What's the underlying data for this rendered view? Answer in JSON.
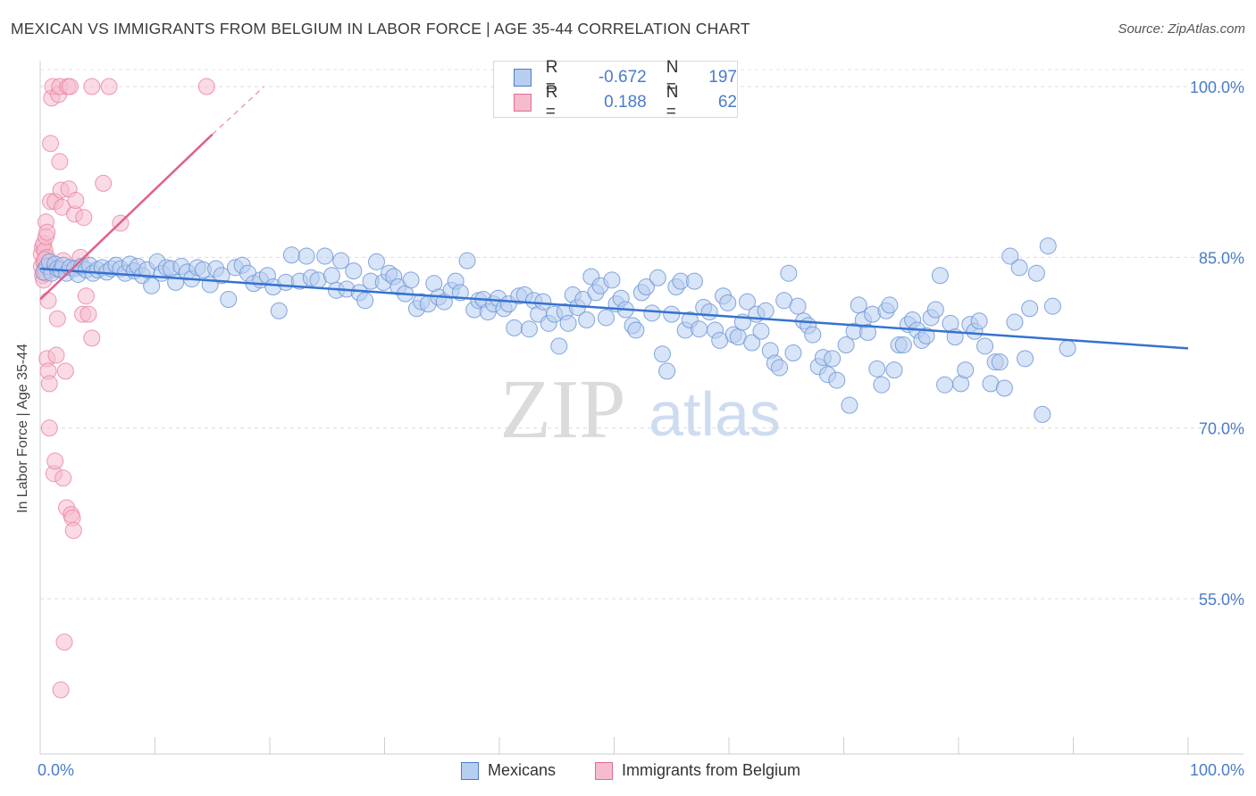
{
  "title": "MEXICAN VS IMMIGRANTS FROM BELGIUM IN LABOR FORCE | AGE 35-44 CORRELATION CHART",
  "source": "Source: ZipAtlas.com",
  "watermark": {
    "zip": "ZIP",
    "atlas": "atlas"
  },
  "colors": {
    "blue": "#4a7cc9",
    "blue_fill": "#b8cef0",
    "pink": "#e46a93",
    "pink_fill": "#f5bccd"
  },
  "legend": {
    "r_label": "R =",
    "n_label": "N =",
    "rows": [
      {
        "r": "-0.672",
        "n": "197"
      },
      {
        "r": "0.188",
        "n": "62"
      }
    ]
  },
  "chart_data": {
    "type": "scatter",
    "title": "MEXICAN VS IMMIGRANTS FROM BELGIUM IN LABOR FORCE | AGE 35-44 CORRELATION CHART",
    "xlabel": "",
    "ylabel": "In Labor Force | Age 35-44",
    "xlim": [
      0,
      100
    ],
    "ylim": [
      43,
      100
    ],
    "x_tick_labels": [
      "0.0%",
      "100.0%"
    ],
    "y_ticks": [
      55,
      70,
      85,
      100
    ],
    "y_tick_labels": [
      "55.0%",
      "70.0%",
      "85.0%",
      "100.0%"
    ],
    "grid": true,
    "legend_position": "top-center",
    "series": [
      {
        "name": "Mexicans",
        "color": "#4a7cc9",
        "trend": {
          "x": [
            0,
            100
          ],
          "y": [
            84.0,
            77.0
          ]
        },
        "points": [
          [
            0.3,
            83.7
          ],
          [
            0.6,
            84.2
          ],
          [
            0.8,
            84.6
          ],
          [
            1.0,
            83.6
          ],
          [
            1.3,
            84.4
          ],
          [
            1.5,
            84.0
          ],
          [
            1.8,
            83.9
          ],
          [
            2.0,
            84.3
          ],
          [
            2.3,
            83.6
          ],
          [
            2.6,
            84.1
          ],
          [
            3.0,
            84.0
          ],
          [
            3.3,
            83.5
          ],
          [
            3.6,
            84.2
          ],
          [
            4.0,
            83.9
          ],
          [
            4.3,
            84.3
          ],
          [
            4.6,
            83.6
          ],
          [
            5.0,
            83.9
          ],
          [
            5.4,
            84.1
          ],
          [
            5.8,
            83.7
          ],
          [
            6.2,
            84.0
          ],
          [
            6.6,
            84.3
          ],
          [
            7.0,
            84.0
          ],
          [
            7.4,
            83.6
          ],
          [
            7.8,
            84.4
          ],
          [
            8.2,
            83.8
          ],
          [
            8.5,
            84.2
          ],
          [
            8.9,
            83.4
          ],
          [
            9.3,
            83.9
          ],
          [
            9.7,
            82.5
          ],
          [
            10.2,
            84.6
          ],
          [
            10.6,
            83.6
          ],
          [
            11.0,
            84.1
          ],
          [
            11.4,
            84.0
          ],
          [
            11.8,
            82.8
          ],
          [
            12.3,
            84.2
          ],
          [
            12.8,
            83.7
          ],
          [
            13.2,
            83.1
          ],
          [
            13.7,
            84.1
          ],
          [
            14.2,
            83.9
          ],
          [
            14.8,
            82.6
          ],
          [
            15.3,
            84.0
          ],
          [
            15.8,
            83.4
          ],
          [
            16.4,
            81.3
          ],
          [
            17.0,
            84.1
          ],
          [
            17.6,
            84.3
          ],
          [
            18.1,
            83.6
          ],
          [
            18.6,
            82.7
          ],
          [
            19.2,
            83.0
          ],
          [
            19.8,
            83.4
          ],
          [
            20.3,
            82.4
          ],
          [
            20.8,
            80.3
          ],
          [
            21.4,
            82.8
          ],
          [
            21.9,
            85.2
          ],
          [
            22.6,
            82.9
          ],
          [
            23.2,
            85.1
          ],
          [
            23.6,
            83.2
          ],
          [
            24.2,
            83.0
          ],
          [
            24.8,
            85.1
          ],
          [
            25.4,
            83.4
          ],
          [
            25.8,
            82.1
          ],
          [
            26.2,
            84.7
          ],
          [
            26.7,
            82.2
          ],
          [
            27.3,
            83.8
          ],
          [
            27.8,
            81.9
          ],
          [
            28.3,
            81.2
          ],
          [
            28.8,
            82.9
          ],
          [
            29.3,
            84.6
          ],
          [
            29.9,
            82.8
          ],
          [
            30.4,
            83.6
          ],
          [
            30.8,
            83.3
          ],
          [
            31.2,
            82.4
          ],
          [
            31.8,
            81.8
          ],
          [
            32.3,
            83.0
          ],
          [
            32.8,
            80.5
          ],
          [
            33.2,
            81.1
          ],
          [
            33.8,
            80.9
          ],
          [
            34.3,
            82.7
          ],
          [
            34.7,
            81.5
          ],
          [
            35.2,
            81.1
          ],
          [
            35.8,
            82.1
          ],
          [
            36.2,
            82.9
          ],
          [
            36.6,
            81.9
          ],
          [
            37.2,
            84.7
          ],
          [
            37.8,
            80.4
          ],
          [
            38.2,
            81.2
          ],
          [
            38.6,
            81.3
          ],
          [
            39.0,
            80.2
          ],
          [
            39.5,
            80.9
          ],
          [
            39.9,
            81.4
          ],
          [
            40.4,
            80.5
          ],
          [
            40.8,
            80.9
          ],
          [
            41.3,
            78.8
          ],
          [
            41.7,
            81.6
          ],
          [
            42.2,
            81.7
          ],
          [
            42.6,
            78.7
          ],
          [
            43.0,
            81.2
          ],
          [
            43.4,
            80.0
          ],
          [
            43.8,
            81.1
          ],
          [
            44.3,
            79.2
          ],
          [
            44.8,
            80.0
          ],
          [
            45.2,
            77.2
          ],
          [
            45.7,
            80.2
          ],
          [
            46.0,
            79.2
          ],
          [
            46.4,
            81.7
          ],
          [
            46.8,
            80.6
          ],
          [
            47.3,
            81.3
          ],
          [
            47.6,
            79.5
          ],
          [
            48.0,
            83.3
          ],
          [
            48.4,
            81.9
          ],
          [
            48.8,
            82.5
          ],
          [
            49.3,
            79.7
          ],
          [
            49.8,
            83.0
          ],
          [
            50.2,
            80.9
          ],
          [
            50.6,
            81.4
          ],
          [
            51.0,
            80.4
          ],
          [
            51.6,
            79.0
          ],
          [
            51.9,
            78.6
          ],
          [
            52.4,
            81.9
          ],
          [
            52.8,
            82.4
          ],
          [
            53.3,
            80.1
          ],
          [
            53.8,
            83.2
          ],
          [
            54.2,
            76.5
          ],
          [
            54.6,
            75.0
          ],
          [
            55.0,
            80.0
          ],
          [
            55.4,
            82.4
          ],
          [
            55.8,
            82.9
          ],
          [
            56.2,
            78.6
          ],
          [
            56.6,
            79.5
          ],
          [
            57.0,
            82.9
          ],
          [
            57.4,
            78.7
          ],
          [
            57.8,
            80.6
          ],
          [
            58.3,
            80.2
          ],
          [
            58.8,
            78.6
          ],
          [
            59.2,
            77.7
          ],
          [
            59.5,
            81.6
          ],
          [
            59.9,
            81.0
          ],
          [
            60.4,
            78.2
          ],
          [
            60.8,
            78.0
          ],
          [
            61.2,
            79.3
          ],
          [
            61.6,
            81.1
          ],
          [
            62.0,
            77.5
          ],
          [
            62.4,
            80.0
          ],
          [
            62.8,
            78.5
          ],
          [
            63.2,
            80.3
          ],
          [
            63.6,
            76.8
          ],
          [
            64.0,
            75.7
          ],
          [
            64.4,
            75.3
          ],
          [
            64.8,
            81.2
          ],
          [
            65.2,
            83.6
          ],
          [
            65.6,
            76.6
          ],
          [
            66.0,
            80.7
          ],
          [
            66.5,
            79.4
          ],
          [
            66.9,
            79.0
          ],
          [
            67.3,
            78.2
          ],
          [
            67.8,
            75.4
          ],
          [
            68.2,
            76.2
          ],
          [
            68.6,
            74.7
          ],
          [
            69.0,
            76.1
          ],
          [
            69.4,
            74.2
          ],
          [
            70.2,
            77.3
          ],
          [
            70.5,
            72.0
          ],
          [
            70.9,
            78.5
          ],
          [
            71.3,
            80.8
          ],
          [
            71.7,
            79.5
          ],
          [
            72.1,
            78.4
          ],
          [
            72.5,
            80.0
          ],
          [
            72.9,
            75.2
          ],
          [
            73.3,
            73.8
          ],
          [
            73.7,
            80.3
          ],
          [
            74.0,
            80.8
          ],
          [
            74.4,
            75.1
          ],
          [
            74.8,
            77.3
          ],
          [
            75.2,
            77.3
          ],
          [
            75.6,
            79.1
          ],
          [
            76.0,
            79.5
          ],
          [
            76.4,
            78.6
          ],
          [
            76.8,
            77.7
          ],
          [
            77.2,
            78.1
          ],
          [
            77.6,
            79.7
          ],
          [
            78.0,
            80.4
          ],
          [
            78.4,
            83.4
          ],
          [
            78.8,
            73.8
          ],
          [
            79.3,
            79.2
          ],
          [
            79.7,
            78.0
          ],
          [
            80.2,
            73.9
          ],
          [
            80.6,
            75.1
          ],
          [
            81.0,
            79.1
          ],
          [
            81.4,
            78.5
          ],
          [
            81.8,
            79.4
          ],
          [
            82.3,
            77.2
          ],
          [
            82.8,
            73.9
          ],
          [
            83.2,
            75.8
          ],
          [
            83.6,
            75.8
          ],
          [
            84.0,
            73.5
          ],
          [
            84.5,
            85.1
          ],
          [
            84.9,
            79.3
          ],
          [
            85.3,
            84.1
          ],
          [
            85.8,
            76.1
          ],
          [
            86.2,
            80.5
          ],
          [
            86.8,
            83.6
          ],
          [
            87.3,
            71.2
          ],
          [
            87.8,
            86.0
          ],
          [
            88.2,
            80.7
          ],
          [
            89.5,
            77.0
          ]
        ]
      },
      {
        "name": "Immigrants from Belgium",
        "color": "#e46a93",
        "trend": {
          "x": [
            0,
            15
          ],
          "y": [
            81.3,
            95.8
          ]
        },
        "trend_dashed": {
          "x": [
            15,
            19.5
          ],
          "y": [
            95.8,
            100.0
          ]
        },
        "points": [
          [
            0.1,
            85.3
          ],
          [
            0.1,
            84.2
          ],
          [
            0.2,
            83.4
          ],
          [
            0.2,
            85.9
          ],
          [
            0.3,
            84.6
          ],
          [
            0.3,
            86.2
          ],
          [
            0.3,
            83.0
          ],
          [
            0.4,
            85.6
          ],
          [
            0.4,
            84.0
          ],
          [
            0.5,
            86.8
          ],
          [
            0.5,
            88.1
          ],
          [
            0.5,
            83.6
          ],
          [
            0.6,
            85.0
          ],
          [
            0.6,
            87.2
          ],
          [
            0.6,
            76.1
          ],
          [
            0.7,
            75.0
          ],
          [
            0.7,
            81.2
          ],
          [
            0.8,
            73.9
          ],
          [
            0.8,
            70.0
          ],
          [
            0.9,
            89.9
          ],
          [
            0.9,
            95.0
          ],
          [
            1.0,
            99.0
          ],
          [
            1.1,
            100.0
          ],
          [
            1.2,
            66.0
          ],
          [
            1.3,
            67.1
          ],
          [
            1.3,
            89.9
          ],
          [
            1.4,
            76.4
          ],
          [
            1.5,
            79.6
          ],
          [
            1.6,
            99.3
          ],
          [
            1.7,
            100.0
          ],
          [
            1.7,
            93.4
          ],
          [
            1.8,
            90.9
          ],
          [
            1.9,
            89.4
          ],
          [
            2.0,
            84.7
          ],
          [
            2.0,
            65.6
          ],
          [
            2.1,
            51.2
          ],
          [
            2.2,
            75.0
          ],
          [
            2.3,
            63.0
          ],
          [
            2.4,
            100.0
          ],
          [
            2.5,
            91.0
          ],
          [
            2.6,
            100.0
          ],
          [
            2.7,
            62.4
          ],
          [
            2.8,
            62.1
          ],
          [
            2.9,
            61.0
          ],
          [
            3.0,
            88.8
          ],
          [
            3.1,
            90.0
          ],
          [
            3.3,
            84.1
          ],
          [
            3.5,
            85.0
          ],
          [
            3.7,
            80.0
          ],
          [
            3.8,
            88.5
          ],
          [
            4.0,
            81.6
          ],
          [
            4.2,
            80.0
          ],
          [
            4.5,
            100.0
          ],
          [
            4.5,
            77.9
          ],
          [
            5.5,
            91.5
          ],
          [
            6.0,
            100.0
          ],
          [
            7.0,
            88.0
          ],
          [
            14.5,
            100.0
          ],
          [
            1.8,
            47.0
          ],
          [
            0.4,
            84.8
          ],
          [
            0.9,
            84.2
          ],
          [
            1.2,
            83.9
          ]
        ]
      }
    ]
  },
  "bottom_legend": [
    "Mexicans",
    "Immigrants from Belgium"
  ]
}
